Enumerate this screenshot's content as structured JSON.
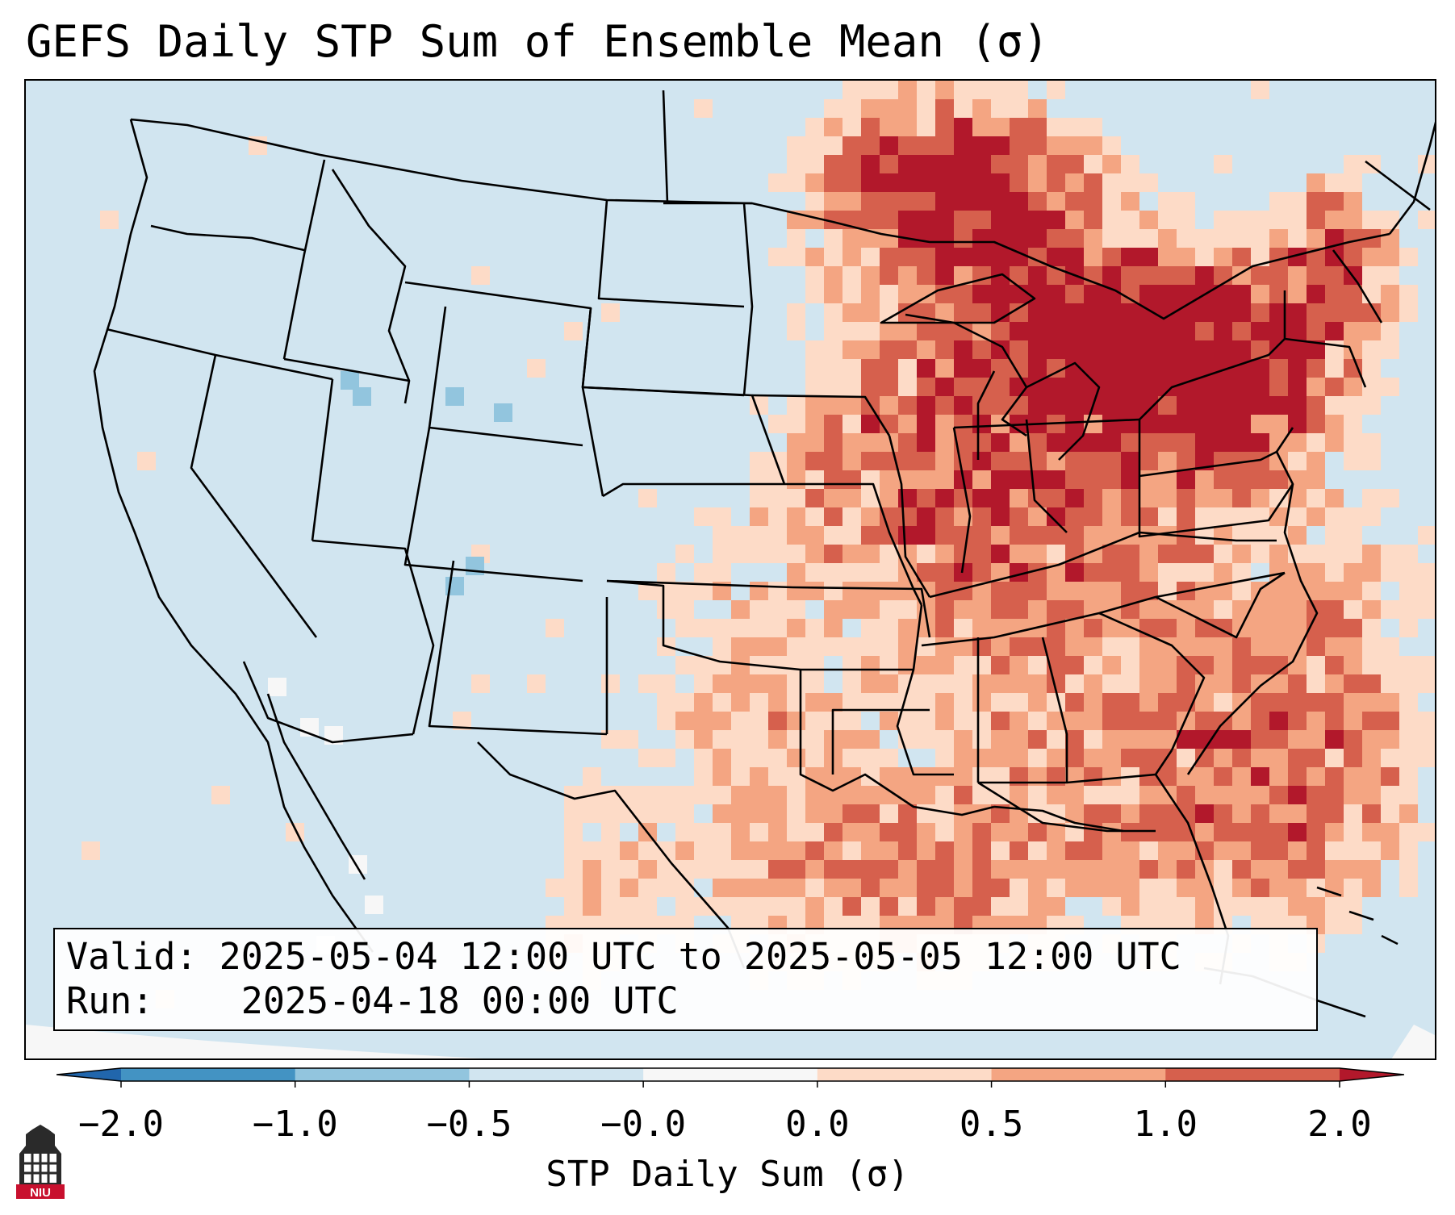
{
  "title": "GEFS Daily STP Sum of Ensemble Mean (σ)",
  "info": {
    "valid_label": "Valid:",
    "valid_value": "2025-05-04 12:00 UTC to 2025-05-05 12:00 UTC",
    "run_label": "Run:",
    "run_value": "2025-04-18 00:00 UTC"
  },
  "colorbar": {
    "label": "STP Daily Sum (σ)",
    "ticks": [
      "−2.0",
      "−1.0",
      "−0.5",
      "−0.0",
      "0.0",
      "0.5",
      "1.0",
      "2.0"
    ],
    "colors": [
      "#2166ac",
      "#4393c3",
      "#92c5de",
      "#d1e5f0",
      "#f7f7f7",
      "#fddbc7",
      "#f4a582",
      "#d6604d",
      "#b2182b"
    ]
  },
  "map": {
    "background_color": "#d1e5f0",
    "background_level": "-0.5 to -0.0",
    "highlights": [
      {
        "area": "Great Lakes / Upper Midwest",
        "level": "1.0 to 2.0+"
      },
      {
        "area": "Southern Ontario / Pennsylvania / New York",
        "level": "1.0 to 2.0+"
      },
      {
        "area": "Mississippi Valley / Southeast / Gulf",
        "level": "0.0 to 1.0"
      },
      {
        "area": "Idaho / Colorado",
        "level": "-1.0 to -0.5"
      }
    ]
  },
  "logo": {
    "text": "NIU"
  }
}
